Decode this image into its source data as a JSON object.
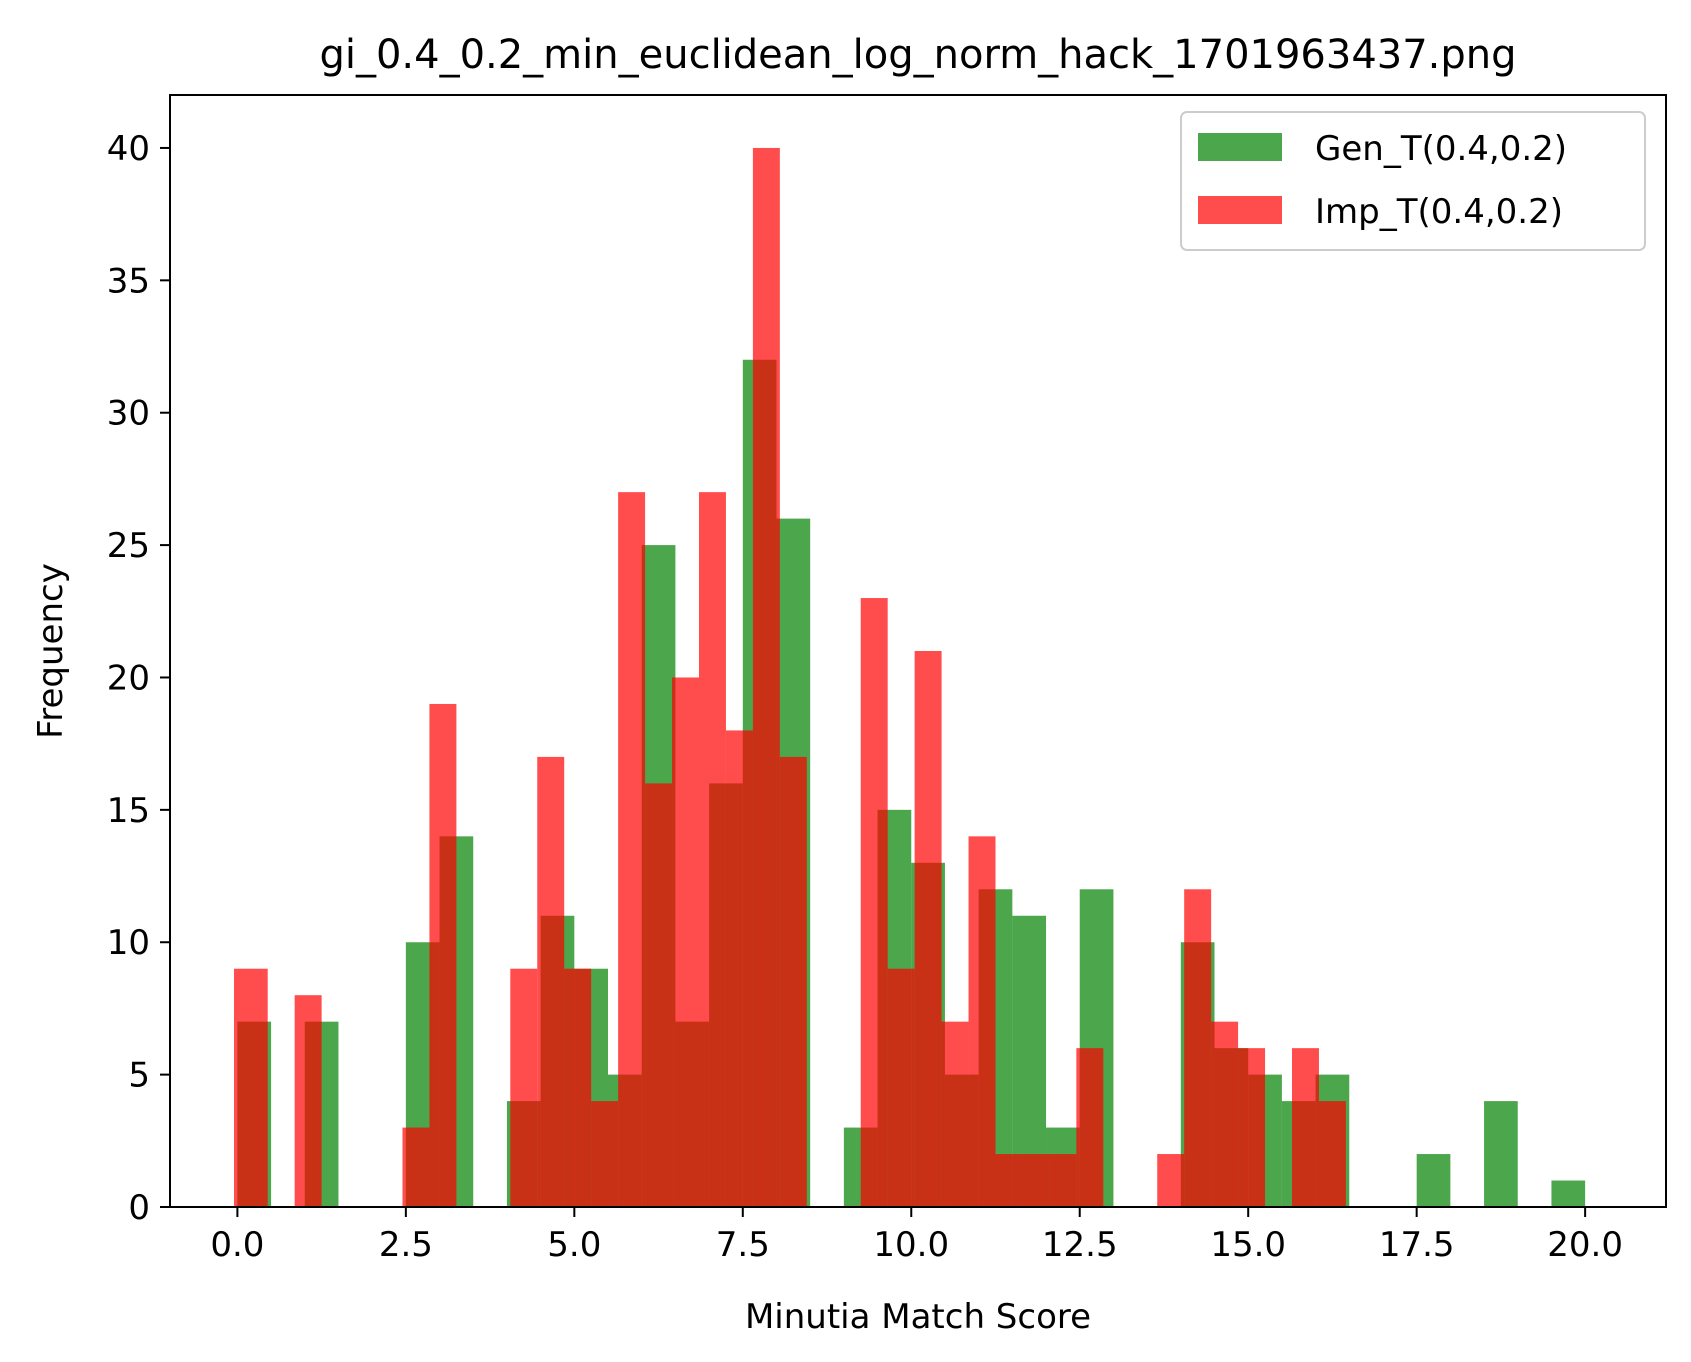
{
  "chart_data": {
    "type": "bar",
    "title": "gi_0.4_0.2_min_euclidean_log_norm_hack_1701963437.png",
    "xlabel": "Minutia Match Score",
    "ylabel": "Frequency",
    "xlim": [
      -1.0,
      21.2
    ],
    "ylim": [
      0,
      42
    ],
    "xticks": [
      0.0,
      2.5,
      5.0,
      7.5,
      10.0,
      12.5,
      15.0,
      17.5,
      20.0
    ],
    "xtick_labels": [
      "0.0",
      "2.5",
      "5.0",
      "7.5",
      "10.0",
      "12.5",
      "15.0",
      "17.5",
      "20.0"
    ],
    "yticks": [
      0,
      5,
      10,
      15,
      20,
      25,
      30,
      35,
      40
    ],
    "ytick_labels": [
      "0",
      "5",
      "10",
      "15",
      "20",
      "25",
      "30",
      "35",
      "40"
    ],
    "legend_position": "top-right",
    "series": [
      {
        "name": "Gen_T(0.4,0.2)",
        "color": "#008000",
        "opacity": 0.7,
        "bins": [
          {
            "x0": 0.0,
            "x1": 0.5,
            "value": 7
          },
          {
            "x0": 1.0,
            "x1": 1.5,
            "value": 7
          },
          {
            "x0": 2.5,
            "x1": 3.0,
            "value": 10
          },
          {
            "x0": 3.0,
            "x1": 3.5,
            "value": 14
          },
          {
            "x0": 4.0,
            "x1": 4.5,
            "value": 4
          },
          {
            "x0": 4.5,
            "x1": 5.0,
            "value": 11
          },
          {
            "x0": 5.0,
            "x1": 5.5,
            "value": 9
          },
          {
            "x0": 5.5,
            "x1": 6.0,
            "value": 5
          },
          {
            "x0": 6.0,
            "x1": 6.5,
            "value": 25
          },
          {
            "x0": 6.5,
            "x1": 7.0,
            "value": 7
          },
          {
            "x0": 7.0,
            "x1": 7.5,
            "value": 16
          },
          {
            "x0": 7.5,
            "x1": 8.0,
            "value": 32
          },
          {
            "x0": 8.0,
            "x1": 8.5,
            "value": 26
          },
          {
            "x0": 9.0,
            "x1": 9.5,
            "value": 3
          },
          {
            "x0": 9.5,
            "x1": 10.0,
            "value": 15
          },
          {
            "x0": 10.0,
            "x1": 10.5,
            "value": 13
          },
          {
            "x0": 10.5,
            "x1": 11.0,
            "value": 5
          },
          {
            "x0": 11.0,
            "x1": 11.5,
            "value": 12
          },
          {
            "x0": 11.5,
            "x1": 12.0,
            "value": 11
          },
          {
            "x0": 12.0,
            "x1": 12.5,
            "value": 3
          },
          {
            "x0": 12.5,
            "x1": 13.0,
            "value": 12
          },
          {
            "x0": 14.0,
            "x1": 14.5,
            "value": 10
          },
          {
            "x0": 14.5,
            "x1": 15.0,
            "value": 6
          },
          {
            "x0": 15.0,
            "x1": 15.5,
            "value": 5
          },
          {
            "x0": 15.5,
            "x1": 16.0,
            "value": 4
          },
          {
            "x0": 16.0,
            "x1": 16.5,
            "value": 5
          },
          {
            "x0": 17.5,
            "x1": 18.0,
            "value": 2
          },
          {
            "x0": 18.5,
            "x1": 19.0,
            "value": 4
          },
          {
            "x0": 19.5,
            "x1": 20.0,
            "value": 1
          }
        ]
      },
      {
        "name": "Imp_T(0.4,0.2)",
        "color": "#ff0000",
        "opacity": 0.7,
        "bins": [
          {
            "x0": -0.05,
            "x1": 0.45,
            "value": 9
          },
          {
            "x0": 0.85,
            "x1": 1.25,
            "value": 8
          },
          {
            "x0": 2.45,
            "x1": 2.85,
            "value": 3
          },
          {
            "x0": 2.85,
            "x1": 3.25,
            "value": 19
          },
          {
            "x0": 4.05,
            "x1": 4.45,
            "value": 9
          },
          {
            "x0": 4.45,
            "x1": 4.85,
            "value": 17
          },
          {
            "x0": 4.85,
            "x1": 5.25,
            "value": 9
          },
          {
            "x0": 5.25,
            "x1": 5.65,
            "value": 4
          },
          {
            "x0": 5.65,
            "x1": 6.05,
            "value": 27
          },
          {
            "x0": 6.05,
            "x1": 6.45,
            "value": 16
          },
          {
            "x0": 6.45,
            "x1": 6.85,
            "value": 20
          },
          {
            "x0": 6.85,
            "x1": 7.25,
            "value": 27
          },
          {
            "x0": 7.25,
            "x1": 7.65,
            "value": 18
          },
          {
            "x0": 7.65,
            "x1": 8.05,
            "value": 40
          },
          {
            "x0": 8.05,
            "x1": 8.45,
            "value": 17
          },
          {
            "x0": 9.25,
            "x1": 9.65,
            "value": 23
          },
          {
            "x0": 9.65,
            "x1": 10.05,
            "value": 9
          },
          {
            "x0": 10.05,
            "x1": 10.45,
            "value": 21
          },
          {
            "x0": 10.45,
            "x1": 10.85,
            "value": 7
          },
          {
            "x0": 10.85,
            "x1": 11.25,
            "value": 14
          },
          {
            "x0": 11.25,
            "x1": 11.65,
            "value": 2
          },
          {
            "x0": 11.65,
            "x1": 12.05,
            "value": 2
          },
          {
            "x0": 12.05,
            "x1": 12.45,
            "value": 2
          },
          {
            "x0": 12.45,
            "x1": 12.85,
            "value": 6
          },
          {
            "x0": 13.65,
            "x1": 14.05,
            "value": 2
          },
          {
            "x0": 14.05,
            "x1": 14.45,
            "value": 12
          },
          {
            "x0": 14.45,
            "x1": 14.85,
            "value": 7
          },
          {
            "x0": 14.85,
            "x1": 15.25,
            "value": 6
          },
          {
            "x0": 15.65,
            "x1": 16.05,
            "value": 6
          },
          {
            "x0": 16.05,
            "x1": 16.45,
            "value": 4
          }
        ]
      }
    ]
  }
}
